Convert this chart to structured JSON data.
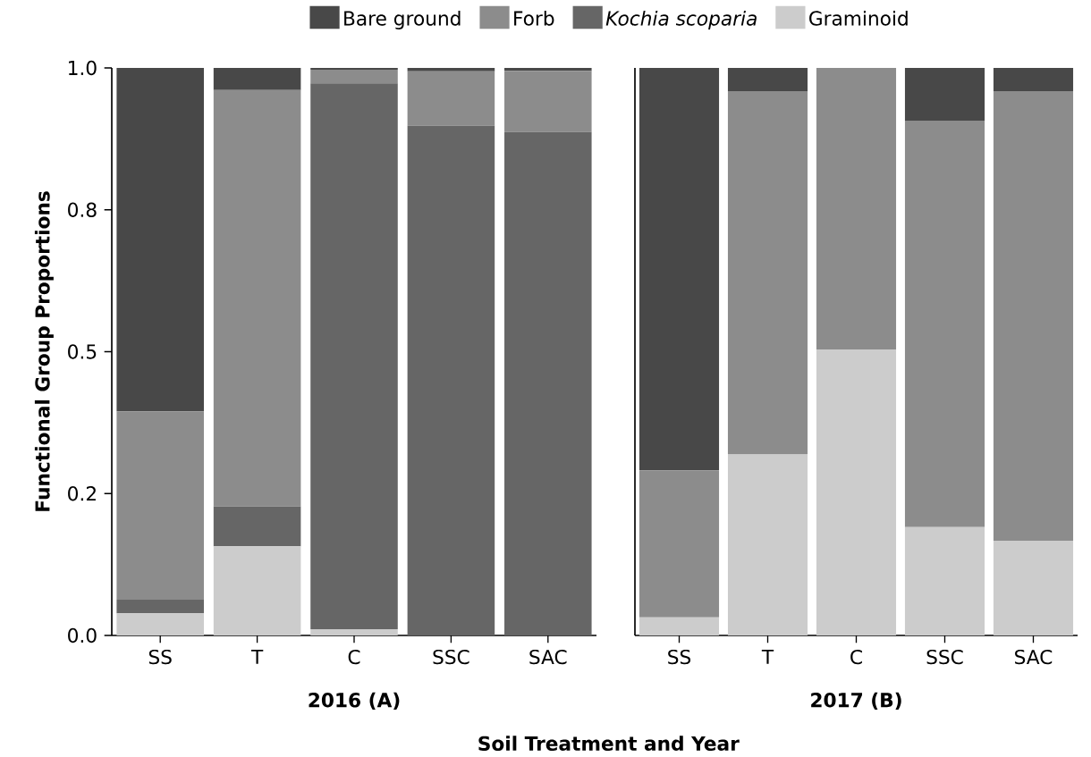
{
  "chart_data": [
    {
      "type": "bar",
      "stacked": true,
      "xlabel": "2016 (A)",
      "ylabel": "Functional Group Proportions",
      "categories": [
        "SS",
        "T",
        "C",
        "SSC",
        "SAC"
      ],
      "series": [
        {
          "name": "Graminoid",
          "color": "#cccccc",
          "values": [
            0.039,
            0.157,
            0.011,
            0,
            0
          ]
        },
        {
          "name": "*Kochia scoparia*",
          "color": "#666666",
          "values": [
            0.024,
            0.07,
            0.962,
            0.898,
            0.887
          ]
        },
        {
          "name": "Forb",
          "color": "#8c8c8c",
          "values": [
            0.332,
            0.734,
            0.024,
            0.096,
            0.108
          ]
        },
        {
          "name": "Bare ground",
          "color": "#484848",
          "values": [
            0.605,
            0.039,
            0.003,
            0.006,
            0.005
          ]
        }
      ],
      "ylim": [
        0,
        1
      ],
      "yticks": [
        {
          "value": 0,
          "label": "0.0"
        },
        {
          "value": 0.25,
          "label": "0.2"
        },
        {
          "value": 0.5,
          "label": "0.5"
        },
        {
          "value": 0.75,
          "label": "0.8"
        },
        {
          "value": 1,
          "label": "1.0"
        }
      ],
      "legend": "top"
    },
    {
      "type": "bar",
      "stacked": true,
      "xlabel": "2017 (B)",
      "categories": [
        "SS",
        "T",
        "C",
        "SSC",
        "SAC"
      ],
      "series": [
        {
          "color": "#cccccc",
          "values": [
            0.032,
            0.319,
            0.504,
            0.191,
            0.167
          ]
        },
        {
          "color": "#8c8c8c",
          "values": [
            0.259,
            0.64,
            0.496,
            0.716,
            0.792
          ]
        },
        {
          "color": "#484848",
          "values": [
            0.709,
            0.041,
            0,
            0.093,
            0.041
          ]
        }
      ],
      "ylim": [
        0,
        1
      ],
      "tick_labels": "x",
      "annotations": [
        "Soil Treatment and Year"
      ]
    }
  ]
}
